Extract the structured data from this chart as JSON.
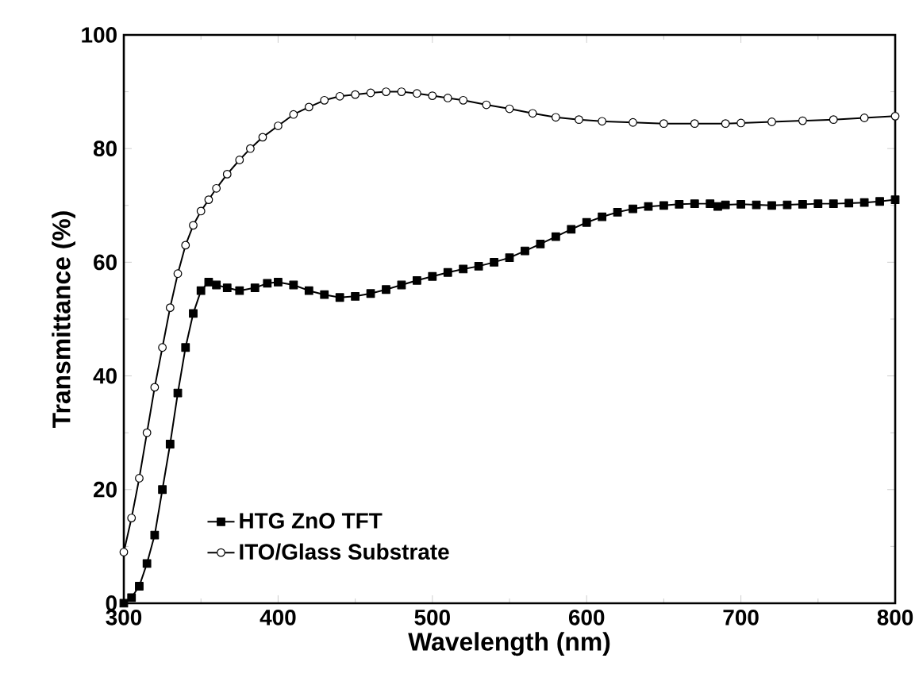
{
  "chart_data": {
    "type": "line",
    "xlabel": "Wavelength (nm)",
    "ylabel": "Transmittance (%)",
    "xlim": [
      300,
      800
    ],
    "ylim": [
      0,
      100
    ],
    "xticks": [
      300,
      400,
      500,
      600,
      700,
      800
    ],
    "yticks": [
      0,
      20,
      40,
      60,
      80,
      100
    ],
    "legend": "bottom left",
    "grid": false,
    "line_style": "solid",
    "series": [
      {
        "name": "HTG ZnO TFT",
        "color": "#000000",
        "marker": "square",
        "x": [
          300,
          305,
          310,
          315,
          320,
          325,
          330,
          335,
          340,
          345,
          350,
          355,
          360,
          367,
          375,
          385,
          393,
          400,
          410,
          420,
          430,
          440,
          450,
          460,
          470,
          480,
          490,
          500,
          510,
          520,
          530,
          540,
          550,
          560,
          570,
          580,
          590,
          600,
          610,
          620,
          630,
          640,
          650,
          660,
          670,
          680,
          685,
          690,
          700,
          710,
          720,
          730,
          740,
          750,
          760,
          770,
          780,
          790,
          800
        ],
        "values": [
          0,
          1,
          3,
          7,
          12,
          20,
          28,
          37,
          45,
          51,
          55,
          56.5,
          56,
          55.5,
          55,
          55.5,
          56.3,
          56.5,
          56,
          55,
          54.3,
          53.8,
          54,
          54.5,
          55.2,
          56,
          56.8,
          57.5,
          58.2,
          58.8,
          59.3,
          60,
          60.8,
          62,
          63.2,
          64.5,
          65.8,
          67,
          68,
          68.8,
          69.4,
          69.8,
          70,
          70.2,
          70.3,
          70.3,
          69.8,
          70.1,
          70.2,
          70.1,
          70,
          70.1,
          70.2,
          70.3,
          70.3,
          70.4,
          70.5,
          70.7,
          71
        ]
      },
      {
        "name": "ITO/Glass Substrate",
        "color": "#000000",
        "marker": "circle",
        "x": [
          300,
          305,
          310,
          315,
          320,
          325,
          330,
          335,
          340,
          345,
          350,
          355,
          360,
          367,
          375,
          382,
          390,
          400,
          410,
          420,
          430,
          440,
          450,
          460,
          470,
          480,
          490,
          500,
          510,
          520,
          535,
          550,
          565,
          580,
          595,
          610,
          630,
          650,
          670,
          690,
          700,
          720,
          740,
          760,
          780,
          800
        ],
        "values": [
          9,
          15,
          22,
          30,
          38,
          45,
          52,
          58,
          63,
          66.5,
          69,
          71,
          73,
          75.5,
          78,
          80,
          82,
          84,
          86,
          87.3,
          88.5,
          89.2,
          89.5,
          89.8,
          90,
          90,
          89.7,
          89.3,
          88.9,
          88.5,
          87.7,
          87,
          86.2,
          85.5,
          85.1,
          84.8,
          84.6,
          84.4,
          84.4,
          84.4,
          84.5,
          84.7,
          84.9,
          85.1,
          85.4,
          85.7
        ]
      }
    ]
  }
}
